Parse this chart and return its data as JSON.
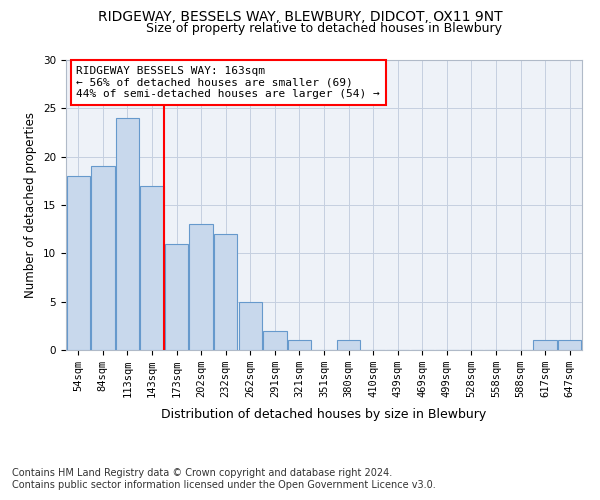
{
  "title1": "RIDGEWAY, BESSELS WAY, BLEWBURY, DIDCOT, OX11 9NT",
  "title2": "Size of property relative to detached houses in Blewbury",
  "xlabel": "Distribution of detached houses by size in Blewbury",
  "ylabel": "Number of detached properties",
  "footnote1": "Contains HM Land Registry data © Crown copyright and database right 2024.",
  "footnote2": "Contains public sector information licensed under the Open Government Licence v3.0.",
  "bar_labels": [
    "54sqm",
    "84sqm",
    "113sqm",
    "143sqm",
    "173sqm",
    "202sqm",
    "232sqm",
    "262sqm",
    "291sqm",
    "321sqm",
    "351sqm",
    "380sqm",
    "410sqm",
    "439sqm",
    "469sqm",
    "499sqm",
    "528sqm",
    "558sqm",
    "588sqm",
    "617sqm",
    "647sqm"
  ],
  "bar_values": [
    18,
    19,
    24,
    17,
    11,
    13,
    12,
    5,
    2,
    1,
    0,
    1,
    0,
    0,
    0,
    0,
    0,
    0,
    0,
    1,
    1
  ],
  "bar_color": "#c8d8ec",
  "bar_edgecolor": "#6699cc",
  "vline_color": "red",
  "vline_pos": 3.5,
  "annotation_text": "RIDGEWAY BESSELS WAY: 163sqm\n← 56% of detached houses are smaller (69)\n44% of semi-detached houses are larger (54) →",
  "annotation_box_edgecolor": "red",
  "annotation_box_facecolor": "white",
  "ylim": [
    0,
    30
  ],
  "yticks": [
    0,
    5,
    10,
    15,
    20,
    25,
    30
  ],
  "grid_color": "#c5cfe0",
  "title1_fontsize": 10,
  "title2_fontsize": 9,
  "xlabel_fontsize": 9,
  "ylabel_fontsize": 8.5,
  "tick_fontsize": 7.5,
  "annotation_fontsize": 8,
  "footnote_fontsize": 7,
  "bg_color": "#eef2f8"
}
